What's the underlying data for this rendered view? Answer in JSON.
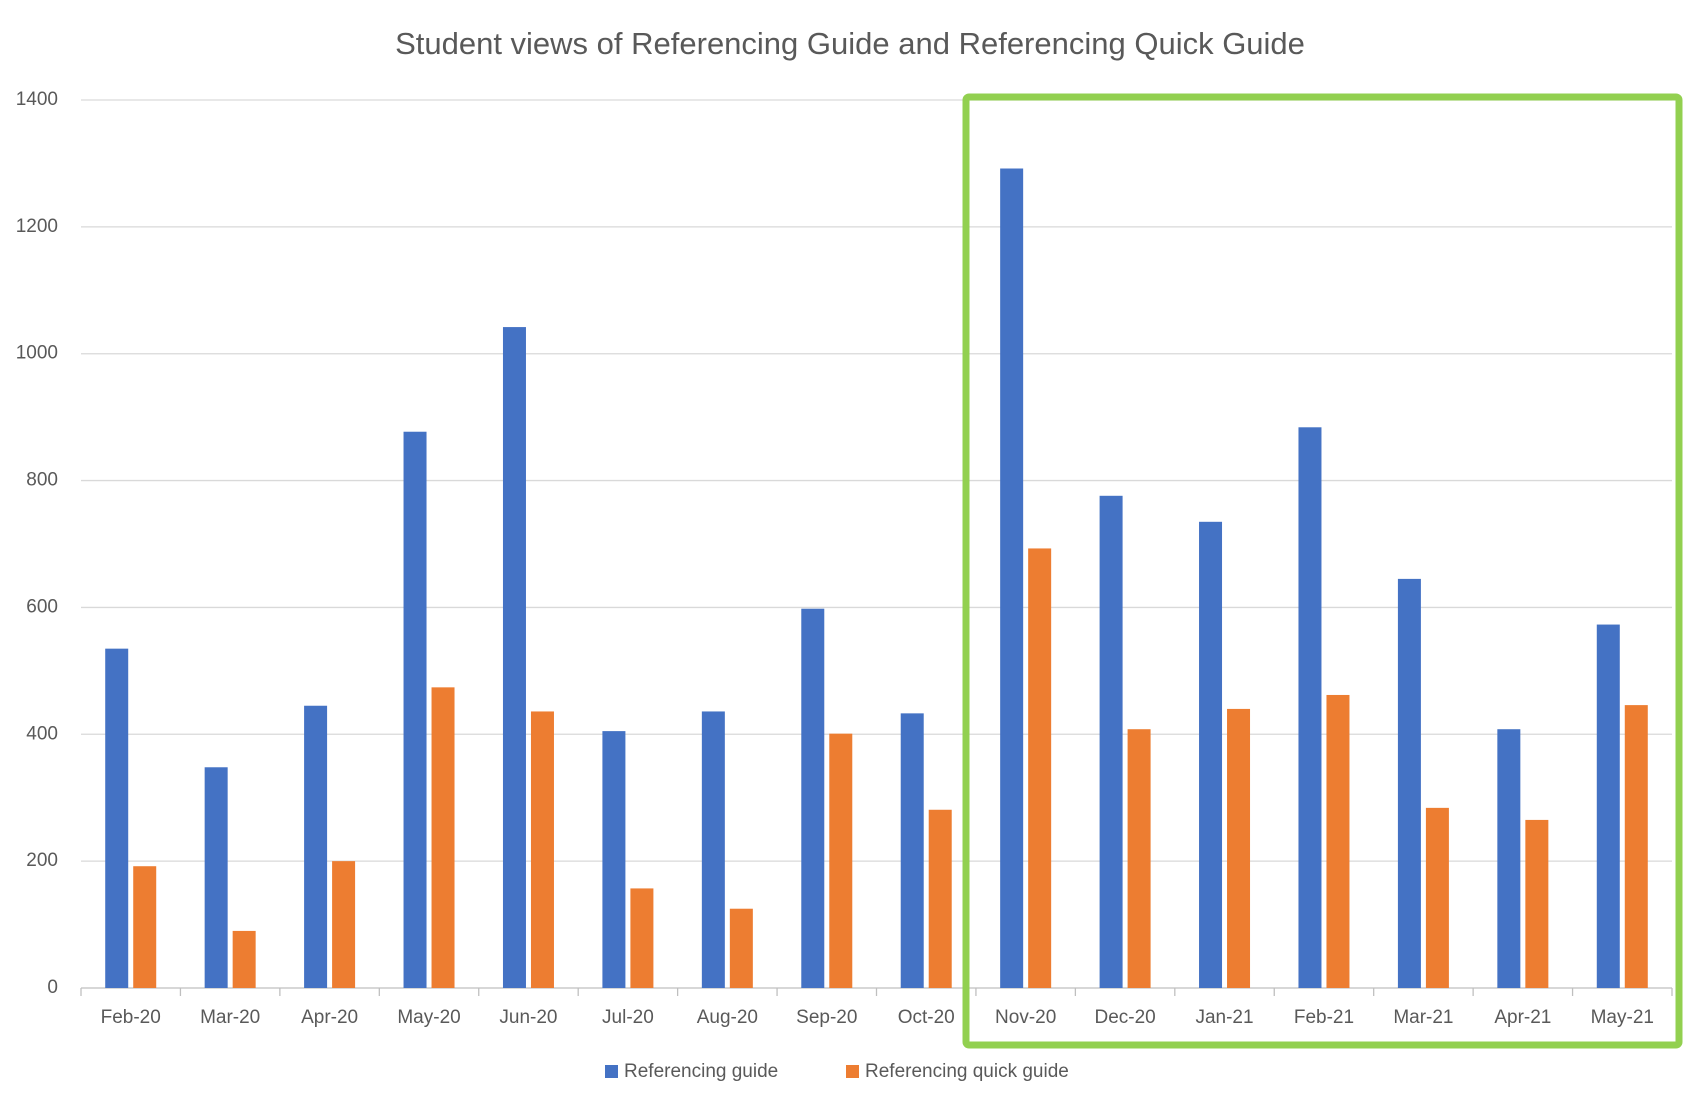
{
  "chart_data": {
    "type": "bar",
    "title": "Student views of Referencing Guide and Referencing Quick Guide",
    "categories": [
      "Feb-20",
      "Mar-20",
      "Apr-20",
      "May-20",
      "Jun-20",
      "Jul-20",
      "Aug-20",
      "Sep-20",
      "Oct-20",
      "Nov-20",
      "Dec-20",
      "Jan-21",
      "Feb-21",
      "Mar-21",
      "Apr-21",
      "May-21"
    ],
    "series": [
      {
        "name": "Referencing guide",
        "color": "#4472c4",
        "values": [
          535,
          348,
          445,
          877,
          1042,
          405,
          436,
          598,
          433,
          1292,
          776,
          735,
          884,
          645,
          408,
          573
        ]
      },
      {
        "name": "Referencing quick guide",
        "color": "#ed7d31",
        "values": [
          192,
          90,
          200,
          474,
          436,
          157,
          125,
          401,
          281,
          693,
          408,
          440,
          462,
          284,
          265,
          446
        ]
      }
    ],
    "ylim": [
      0,
      1400
    ],
    "yticks": [
      0,
      200,
      400,
      600,
      800,
      1000,
      1200,
      1400
    ],
    "grid": true,
    "legend": "bottom"
  }
}
